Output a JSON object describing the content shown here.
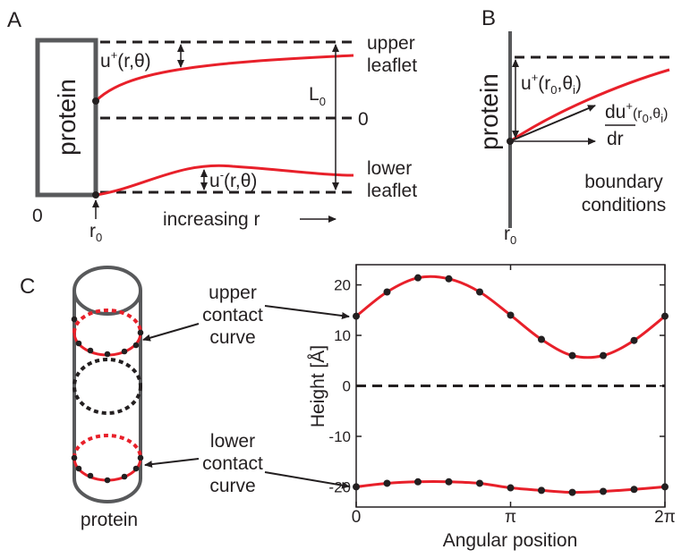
{
  "panel_a": {
    "label": "A",
    "protein": "protein",
    "upper_leaflet": [
      "upper",
      "leaflet"
    ],
    "lower_leaflet": [
      "lower",
      "leaflet"
    ],
    "thickness": [
      "L",
      "0"
    ],
    "midplane": "0",
    "origin": "0",
    "r0": [
      "r",
      "0"
    ],
    "axis": "increasing r",
    "u_plus": [
      "u",
      "+",
      "(r,θ)"
    ],
    "u_minus": [
      "u",
      "-",
      "(r,θ)"
    ]
  },
  "panel_b": {
    "label": "B",
    "protein": "protein",
    "u_plus": [
      "u",
      "+",
      "(r",
      "0",
      ",θ",
      "i",
      ")"
    ],
    "derivative_top": [
      "du",
      "+",
      "(r",
      "0",
      ",θ",
      "i",
      ")"
    ],
    "derivative_bottom": "dr",
    "caption": [
      "boundary",
      "conditions"
    ],
    "r0": [
      "r",
      "0"
    ]
  },
  "panel_c": {
    "label": "C",
    "upper_label": [
      "upper",
      "contact",
      "curve"
    ],
    "lower_label": [
      "lower",
      "contact",
      "curve"
    ],
    "protein": "protein"
  },
  "chart_data": {
    "type": "line",
    "ylabel": "Height [Å]",
    "xlabel": "Angular position",
    "x": [
      0,
      0.62832,
      1.25664,
      1.88496,
      2.51327,
      3.14159,
      3.76991,
      4.39823,
      5.02655,
      5.65487,
      6.28319
    ],
    "series": [
      {
        "color": "#e8202a",
        "marker_color": "#231f20",
        "values": [
          13.8,
          18.6,
          21.4,
          21.2,
          18.6,
          14.0,
          9.2,
          6.0,
          6.0,
          9.0,
          13.8
        ]
      },
      {
        "color": "#e8202a",
        "marker_color": "#231f20",
        "values": [
          -20.0,
          -19.3,
          -19.0,
          -19.0,
          -19.3,
          -20.2,
          -20.7,
          -21.1,
          -20.9,
          -20.5,
          -20.0
        ]
      }
    ],
    "xlim": [
      0,
      6.28319
    ],
    "xticks": [
      0,
      {
        "value": 3.14159,
        "label": "π"
      },
      {
        "value": 6.28319,
        "label": "2π"
      }
    ],
    "ylim": [
      -24,
      24
    ],
    "yticks": [
      -20,
      -10,
      0,
      10,
      20
    ],
    "hline": 0
  }
}
